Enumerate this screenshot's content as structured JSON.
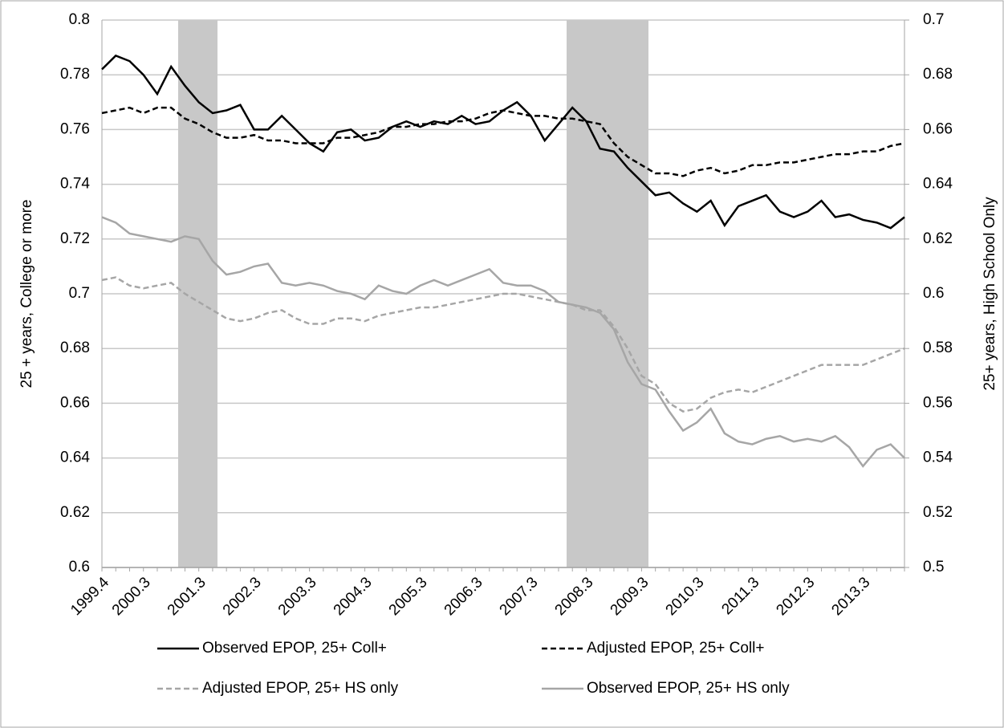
{
  "chart_data": {
    "type": "line",
    "y_label": "25 + years, College or more",
    "y2_label": "25+ years, High School Only",
    "categories": [
      "1999.4",
      null,
      null,
      "2000.3",
      null,
      null,
      null,
      "2001.3",
      null,
      null,
      null,
      "2002.3",
      null,
      null,
      null,
      "2003.3",
      null,
      null,
      null,
      "2004.3",
      null,
      null,
      null,
      "2005.3",
      null,
      null,
      null,
      "2006.3",
      null,
      null,
      null,
      "2007.3",
      null,
      null,
      null,
      "2008.3",
      null,
      null,
      null,
      "2009.3",
      null,
      null,
      null,
      "2010.3",
      null,
      null,
      null,
      "2011.3",
      null,
      null,
      null,
      "2012.3",
      null,
      null,
      null,
      "2013.3",
      null,
      null,
      null
    ],
    "ylim": [
      0.6,
      0.8
    ],
    "yticks": [
      0.6,
      0.62,
      0.64,
      0.66,
      0.68,
      0.7,
      0.72,
      0.74,
      0.76,
      0.78,
      0.8
    ],
    "y2lim": [
      0.5,
      0.7
    ],
    "y2ticks": [
      0.5,
      0.52,
      0.54,
      0.56,
      0.58,
      0.6,
      0.62,
      0.64,
      0.66,
      0.68,
      0.7
    ],
    "grid": true,
    "series": [
      {
        "name": "Observed EPOP, 25+ Coll+",
        "color": "#000000",
        "dash": false,
        "axis": "y",
        "values": [
          0.782,
          0.787,
          0.785,
          0.78,
          0.773,
          0.783,
          0.776,
          0.77,
          0.766,
          0.767,
          0.769,
          0.76,
          0.76,
          0.765,
          0.76,
          0.755,
          0.752,
          0.759,
          0.76,
          0.756,
          0.757,
          0.761,
          0.763,
          0.761,
          0.763,
          0.762,
          0.765,
          0.762,
          0.763,
          0.767,
          0.77,
          0.765,
          0.756,
          0.762,
          0.768,
          0.763,
          0.753,
          0.752,
          0.746,
          0.741,
          0.736,
          0.737,
          0.733,
          0.73,
          0.734,
          0.725,
          0.732,
          0.734,
          0.736,
          0.73,
          0.728,
          0.73,
          0.734,
          0.728,
          0.729,
          0.727,
          0.726,
          0.724,
          0.728
        ]
      },
      {
        "name": "Adjusted EPOP, 25+ Coll+",
        "color": "#000000",
        "dash": true,
        "axis": "y",
        "values": [
          0.766,
          0.767,
          0.768,
          0.766,
          0.768,
          0.768,
          0.764,
          0.762,
          0.759,
          0.757,
          0.757,
          0.758,
          0.756,
          0.756,
          0.755,
          0.755,
          0.755,
          0.757,
          0.757,
          0.758,
          0.759,
          0.761,
          0.761,
          0.762,
          0.762,
          0.763,
          0.763,
          0.764,
          0.766,
          0.767,
          0.766,
          0.765,
          0.765,
          0.764,
          0.764,
          0.763,
          0.762,
          0.755,
          0.75,
          0.747,
          0.744,
          0.744,
          0.743,
          0.745,
          0.746,
          0.744,
          0.745,
          0.747,
          0.747,
          0.748,
          0.748,
          0.749,
          0.75,
          0.751,
          0.751,
          0.752,
          0.752,
          0.754,
          0.755
        ]
      },
      {
        "name": "Adjusted EPOP, 25+ HS only",
        "color": "#a6a6a6",
        "dash": true,
        "axis": "y2",
        "values": [
          0.605,
          0.606,
          0.603,
          0.602,
          0.603,
          0.604,
          0.6,
          0.597,
          0.594,
          0.591,
          0.59,
          0.591,
          0.593,
          0.594,
          0.591,
          0.589,
          0.589,
          0.591,
          0.591,
          0.59,
          0.592,
          0.593,
          0.594,
          0.595,
          0.595,
          0.596,
          0.597,
          0.598,
          0.599,
          0.6,
          0.6,
          0.599,
          0.598,
          0.597,
          0.596,
          0.594,
          0.594,
          0.588,
          0.58,
          0.57,
          0.567,
          0.56,
          0.557,
          0.558,
          0.562,
          0.564,
          0.565,
          0.564,
          0.566,
          0.568,
          0.57,
          0.572,
          0.574,
          0.574,
          0.574,
          0.574,
          0.576,
          0.578,
          0.58
        ]
      },
      {
        "name": "Observed EPOP, 25+ HS only",
        "color": "#a6a6a6",
        "dash": false,
        "axis": "y2",
        "values": [
          0.628,
          0.626,
          0.622,
          0.621,
          0.62,
          0.619,
          0.621,
          0.62,
          0.612,
          0.607,
          0.608,
          0.61,
          0.611,
          0.604,
          0.603,
          0.604,
          0.603,
          0.601,
          0.6,
          0.598,
          0.603,
          0.601,
          0.6,
          0.603,
          0.605,
          0.603,
          0.605,
          0.607,
          0.609,
          0.604,
          0.603,
          0.603,
          0.601,
          0.597,
          0.596,
          0.595,
          0.593,
          0.587,
          0.575,
          0.567,
          0.565,
          0.557,
          0.55,
          0.553,
          0.558,
          0.549,
          0.546,
          0.545,
          0.547,
          0.548,
          0.546,
          0.547,
          0.546,
          0.548,
          0.544,
          0.537,
          0.543,
          0.545,
          0.54
        ]
      }
    ]
  }
}
